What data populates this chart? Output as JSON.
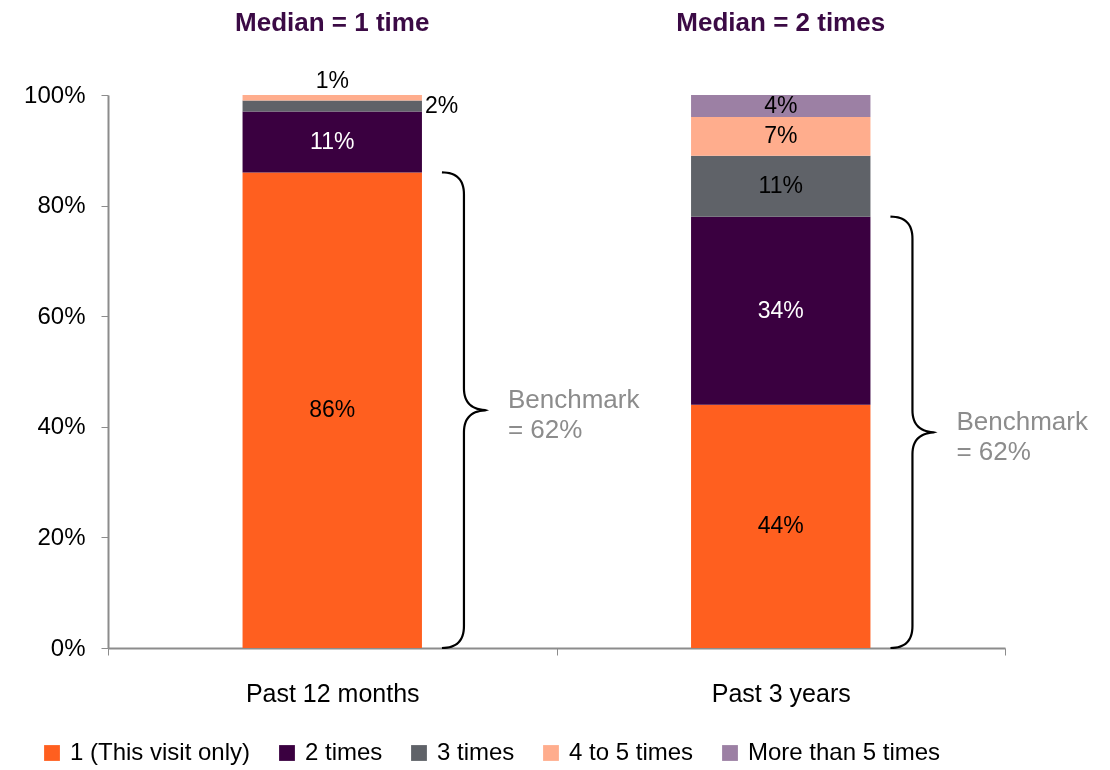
{
  "chart_data": {
    "type": "bar",
    "stacked": true,
    "categories": [
      "Past 12 months",
      "Past 3 years"
    ],
    "series": [
      {
        "name": "1 (This visit only)",
        "color": "#ff5f1f",
        "values": [
          86,
          44
        ],
        "value_labels": [
          "86%",
          "44%"
        ]
      },
      {
        "name": "2 times",
        "color": "#3a0040",
        "values": [
          11,
          34
        ],
        "value_labels": [
          "11%",
          "34%"
        ]
      },
      {
        "name": "3 times",
        "color": "#5f6268",
        "values": [
          2,
          11
        ],
        "value_labels": [
          "2%",
          "11%"
        ]
      },
      {
        "name": "4 to 5 times",
        "color": "#ffad8d",
        "values": [
          1,
          7
        ],
        "value_labels": [
          "1%",
          "7%"
        ]
      },
      {
        "name": "More than 5 times",
        "color": "#9c80a4",
        "values": [
          null,
          4
        ],
        "value_labels": [
          null,
          "4%"
        ]
      }
    ],
    "ylim": [
      0,
      100
    ],
    "yticks": [
      {
        "value": 0,
        "label": "0%"
      },
      {
        "value": 20,
        "label": "20%"
      },
      {
        "value": 40,
        "label": "40%"
      },
      {
        "value": 60,
        "label": "60%"
      },
      {
        "value": 80,
        "label": "80%"
      },
      {
        "value": 100,
        "label": "100%"
      }
    ],
    "legend": "bottom",
    "annotations": [
      "Median = 1 time",
      "Median = 2 times",
      "Benchmark\n= 62%",
      "Benchmark\n= 62%"
    ]
  }
}
